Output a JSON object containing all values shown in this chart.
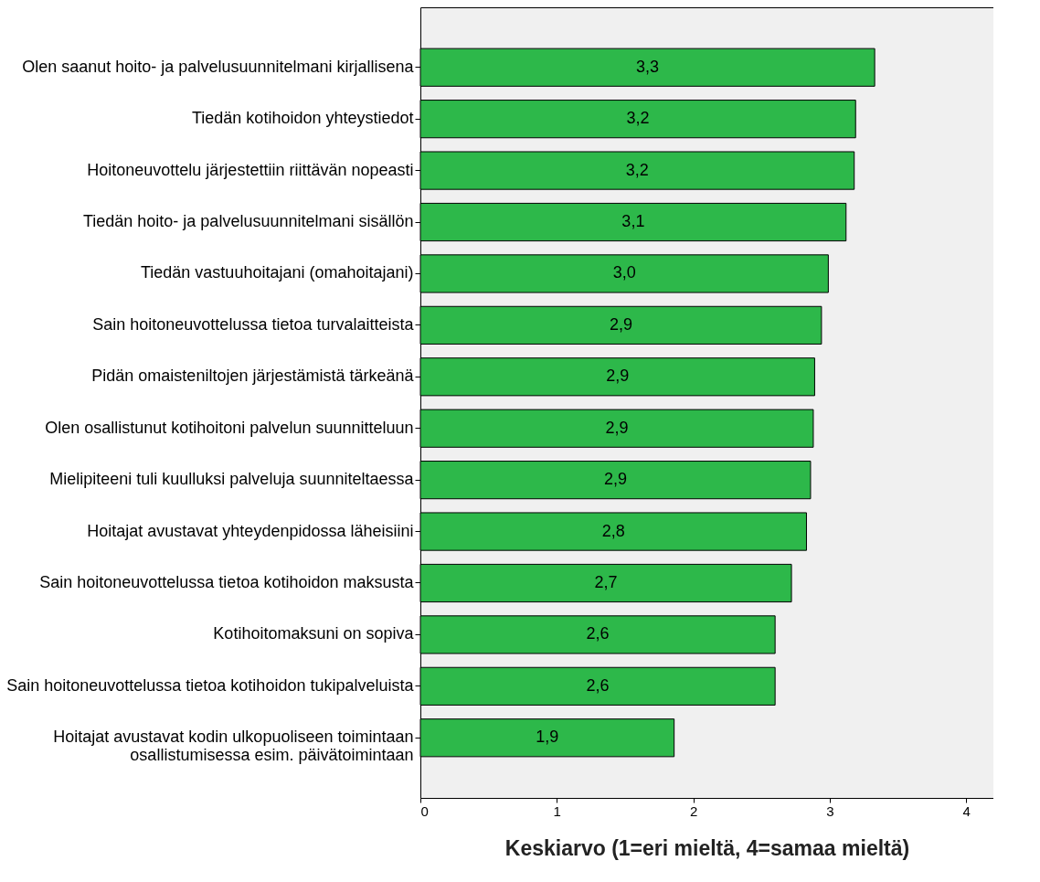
{
  "chart_data": {
    "type": "bar",
    "orientation": "horizontal",
    "xlabel": "Keskiarvo (1=eri mieltä, 4=samaa mieltä)",
    "categories": [
      "Olen saanut hoito- ja palvelusuunnitelmani kirjallisena",
      "Tiedän kotihoidon yhteystiedot",
      "Hoitoneuvottelu järjestettiin riittävän nopeasti",
      "Tiedän hoito- ja palvelusuunnitelmani sisällön",
      "Tiedän vastuuhoitajani (omahoitajani)",
      "Sain hoitoneuvottelussa tietoa turvalaitteista",
      "Pidän omaisteniltojen järjestämistä tärkeänä",
      "Olen osallistunut kotihoitoni palvelun suunnitteluun",
      "Mielipiteeni tuli kuulluksi palveluja suunniteltaessa",
      "Hoitajat avustavat yhteydenpidossa läheisiini",
      "Sain hoitoneuvottelussa tietoa kotihoidon maksusta",
      "Kotihoitomaksuni on sopiva",
      "Sain hoitoneuvottelussa tietoa kotihoidon tukipalveluista",
      "Hoitajat avustavat kodin ulkopuoliseen toimintaan\nosallistumisessa esim. päivätoimintaan"
    ],
    "values": [
      3.33,
      3.19,
      3.18,
      3.12,
      2.99,
      2.94,
      2.89,
      2.88,
      2.86,
      2.83,
      2.72,
      2.6,
      2.6,
      1.86
    ],
    "value_labels": [
      "3,3",
      "3,2",
      "3,2",
      "3,1",
      "3,0",
      "2,9",
      "2,9",
      "2,9",
      "2,9",
      "2,8",
      "2,7",
      "2,6",
      "2,6",
      "1,9"
    ],
    "color": "#2db84a",
    "xlim": [
      0,
      4.2
    ],
    "xticks": [
      0,
      1,
      2,
      3,
      4
    ],
    "grid": false
  }
}
